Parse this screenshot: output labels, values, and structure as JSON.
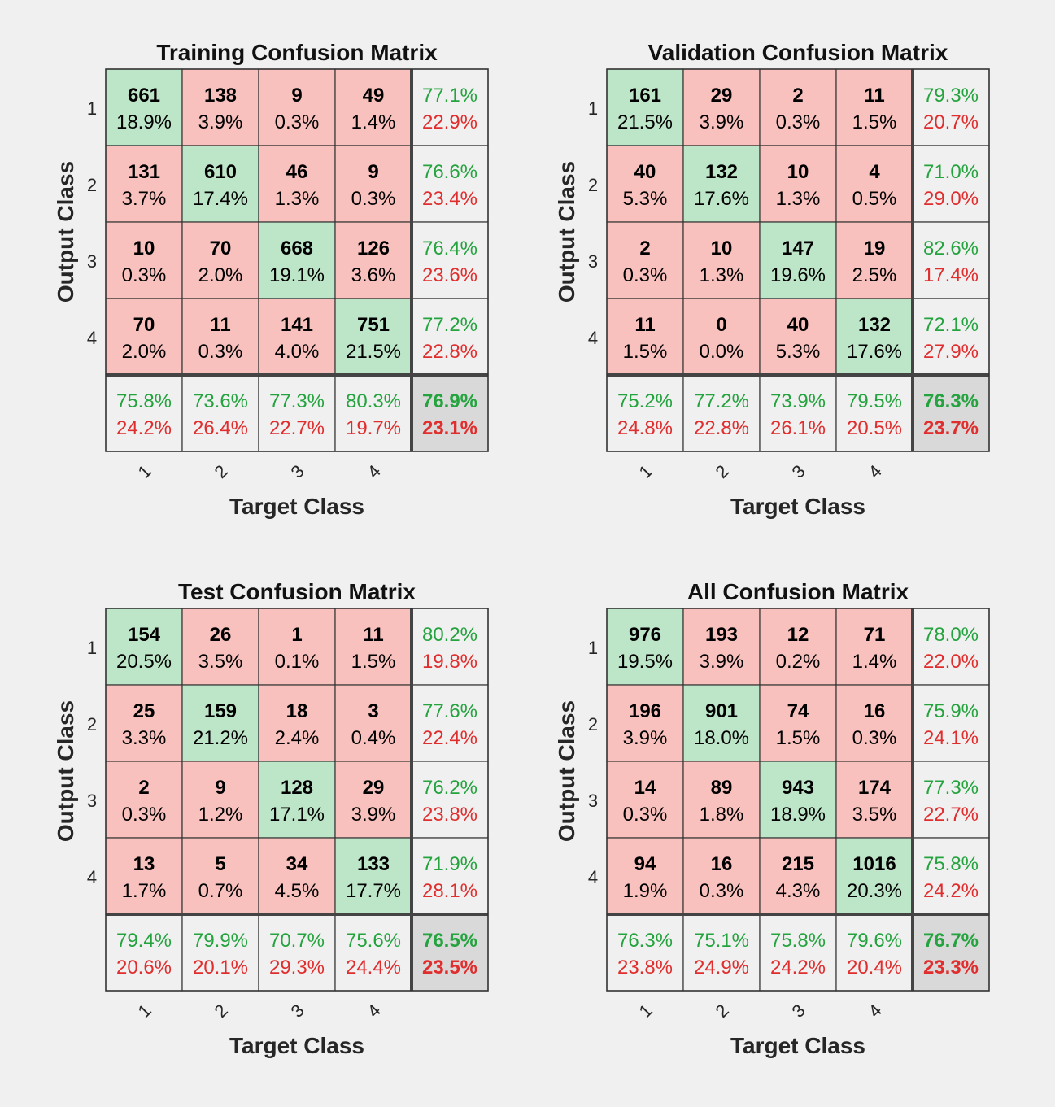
{
  "colors": {
    "correct_cell": "#bde5c8",
    "incorrect_cell": "#f8c1bd",
    "summary_cell": "#f0f0f0",
    "overall_cell": "#d9d9d9",
    "green_text": "#24a33e",
    "red_text": "#e02d2d"
  },
  "chart_data": [
    {
      "type": "heatmap",
      "title": "Training Confusion Matrix",
      "xlabel": "Target Class",
      "ylabel": "Output Class",
      "classes": [
        "1",
        "2",
        "3",
        "4"
      ],
      "counts": [
        [
          661,
          138,
          9,
          49
        ],
        [
          131,
          610,
          46,
          9
        ],
        [
          10,
          70,
          668,
          126
        ],
        [
          70,
          11,
          141,
          751
        ]
      ],
      "percents": [
        [
          "18.9%",
          "3.9%",
          "0.3%",
          "1.4%"
        ],
        [
          "3.7%",
          "17.4%",
          "1.3%",
          "0.3%"
        ],
        [
          "0.3%",
          "2.0%",
          "19.1%",
          "3.6%"
        ],
        [
          "2.0%",
          "0.3%",
          "4.0%",
          "21.5%"
        ]
      ],
      "row_summary": [
        [
          "77.1%",
          "22.9%"
        ],
        [
          "76.6%",
          "23.4%"
        ],
        [
          "76.4%",
          "23.6%"
        ],
        [
          "77.2%",
          "22.8%"
        ]
      ],
      "col_summary": [
        [
          "75.8%",
          "24.2%"
        ],
        [
          "73.6%",
          "26.4%"
        ],
        [
          "77.3%",
          "22.7%"
        ],
        [
          "80.3%",
          "19.7%"
        ]
      ],
      "overall": [
        "76.9%",
        "23.1%"
      ]
    },
    {
      "type": "heatmap",
      "title": "Validation Confusion Matrix",
      "xlabel": "Target Class",
      "ylabel": "Output Class",
      "classes": [
        "1",
        "2",
        "3",
        "4"
      ],
      "counts": [
        [
          161,
          29,
          2,
          11
        ],
        [
          40,
          132,
          10,
          4
        ],
        [
          2,
          10,
          147,
          19
        ],
        [
          11,
          0,
          40,
          132
        ]
      ],
      "percents": [
        [
          "21.5%",
          "3.9%",
          "0.3%",
          "1.5%"
        ],
        [
          "5.3%",
          "17.6%",
          "1.3%",
          "0.5%"
        ],
        [
          "0.3%",
          "1.3%",
          "19.6%",
          "2.5%"
        ],
        [
          "1.5%",
          "0.0%",
          "5.3%",
          "17.6%"
        ]
      ],
      "row_summary": [
        [
          "79.3%",
          "20.7%"
        ],
        [
          "71.0%",
          "29.0%"
        ],
        [
          "82.6%",
          "17.4%"
        ],
        [
          "72.1%",
          "27.9%"
        ]
      ],
      "col_summary": [
        [
          "75.2%",
          "24.8%"
        ],
        [
          "77.2%",
          "22.8%"
        ],
        [
          "73.9%",
          "26.1%"
        ],
        [
          "79.5%",
          "20.5%"
        ]
      ],
      "overall": [
        "76.3%",
        "23.7%"
      ]
    },
    {
      "type": "heatmap",
      "title": "Test Confusion Matrix",
      "xlabel": "Target Class",
      "ylabel": "Output Class",
      "classes": [
        "1",
        "2",
        "3",
        "4"
      ],
      "counts": [
        [
          154,
          26,
          1,
          11
        ],
        [
          25,
          159,
          18,
          3
        ],
        [
          2,
          9,
          128,
          29
        ],
        [
          13,
          5,
          34,
          133
        ]
      ],
      "percents": [
        [
          "20.5%",
          "3.5%",
          "0.1%",
          "1.5%"
        ],
        [
          "3.3%",
          "21.2%",
          "2.4%",
          "0.4%"
        ],
        [
          "0.3%",
          "1.2%",
          "17.1%",
          "3.9%"
        ],
        [
          "1.7%",
          "0.7%",
          "4.5%",
          "17.7%"
        ]
      ],
      "row_summary": [
        [
          "80.2%",
          "19.8%"
        ],
        [
          "77.6%",
          "22.4%"
        ],
        [
          "76.2%",
          "23.8%"
        ],
        [
          "71.9%",
          "28.1%"
        ]
      ],
      "col_summary": [
        [
          "79.4%",
          "20.6%"
        ],
        [
          "79.9%",
          "20.1%"
        ],
        [
          "70.7%",
          "29.3%"
        ],
        [
          "75.6%",
          "24.4%"
        ]
      ],
      "overall": [
        "76.5%",
        "23.5%"
      ]
    },
    {
      "type": "heatmap",
      "title": "All Confusion Matrix",
      "xlabel": "Target Class",
      "ylabel": "Output Class",
      "classes": [
        "1",
        "2",
        "3",
        "4"
      ],
      "counts": [
        [
          976,
          193,
          12,
          71
        ],
        [
          196,
          901,
          74,
          16
        ],
        [
          14,
          89,
          943,
          174
        ],
        [
          94,
          16,
          215,
          1016
        ]
      ],
      "percents": [
        [
          "19.5%",
          "3.9%",
          "0.2%",
          "1.4%"
        ],
        [
          "3.9%",
          "18.0%",
          "1.5%",
          "0.3%"
        ],
        [
          "0.3%",
          "1.8%",
          "18.9%",
          "3.5%"
        ],
        [
          "1.9%",
          "0.3%",
          "4.3%",
          "20.3%"
        ]
      ],
      "row_summary": [
        [
          "78.0%",
          "22.0%"
        ],
        [
          "75.9%",
          "24.1%"
        ],
        [
          "77.3%",
          "22.7%"
        ],
        [
          "75.8%",
          "24.2%"
        ]
      ],
      "col_summary": [
        [
          "76.3%",
          "23.8%"
        ],
        [
          "75.1%",
          "24.9%"
        ],
        [
          "75.8%",
          "24.2%"
        ],
        [
          "79.6%",
          "20.4%"
        ]
      ],
      "overall": [
        "76.7%",
        "23.3%"
      ]
    }
  ]
}
